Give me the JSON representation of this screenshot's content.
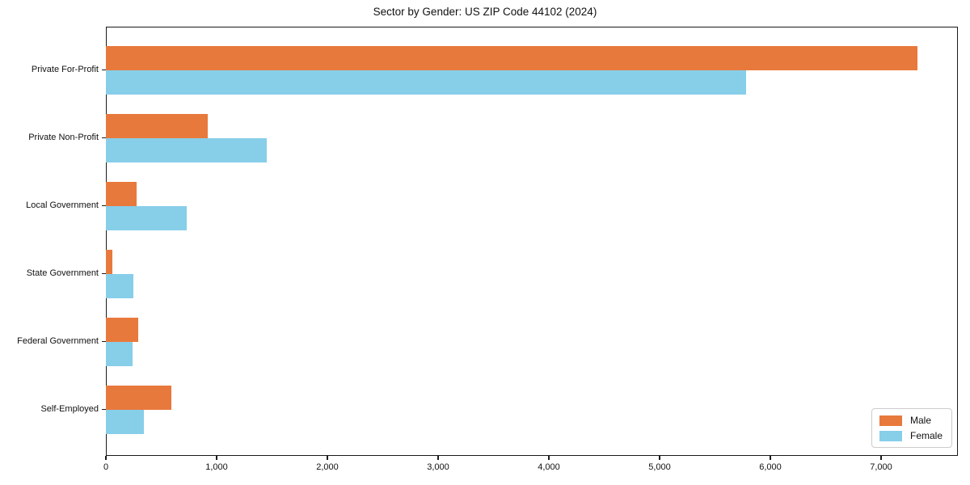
{
  "chart_data": {
    "type": "bar",
    "orientation": "horizontal",
    "title": "Sector by Gender: US ZIP Code 44102 (2024)",
    "categories": [
      "Private For-Profit",
      "Private Non-Profit",
      "Local Government",
      "State Government",
      "Federal Government",
      "Self-Employed"
    ],
    "series": [
      {
        "name": "Male",
        "color": "#e8793c",
        "values": [
          7330,
          920,
          280,
          60,
          290,
          590
        ]
      },
      {
        "name": "Female",
        "color": "#87cee9",
        "values": [
          5780,
          1450,
          730,
          250,
          240,
          340
        ]
      }
    ],
    "xlabel": "",
    "ylabel": "",
    "x_axis": {
      "range": [
        0,
        7670
      ],
      "tick_values": [
        0,
        1000,
        2000,
        3000,
        4000,
        5000,
        6000,
        7000
      ],
      "tick_labels": [
        "0",
        "1,000",
        "2,000",
        "3,000",
        "4,000",
        "5,000",
        "6,000",
        "7,000"
      ]
    },
    "legend": {
      "position": "lower right"
    },
    "grid": false,
    "background_color": "#ffffff",
    "spine_color": "#1a1a1a"
  }
}
